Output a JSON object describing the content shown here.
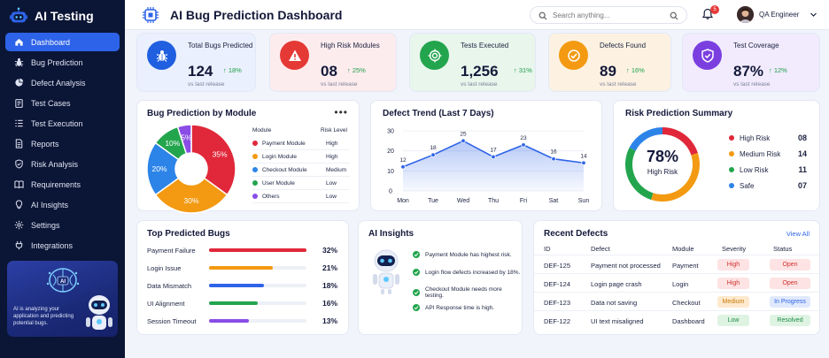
{
  "app": {
    "name": "AI Testing"
  },
  "header": {
    "title": "AI Bug Prediction Dashboard",
    "search_placeholder": "Search anything...",
    "notifications": "5",
    "user": "QA Engineer"
  },
  "sidebar": {
    "items": [
      {
        "label": "Dashboard",
        "icon": "home-icon",
        "active": true
      },
      {
        "label": "Bug Prediction",
        "icon": "bug-icon"
      },
      {
        "label": "Defect Analysis",
        "icon": "pie-icon"
      },
      {
        "label": "Test Cases",
        "icon": "clipboard-icon"
      },
      {
        "label": "Test Execution",
        "icon": "list-icon"
      },
      {
        "label": "Reports",
        "icon": "document-icon"
      },
      {
        "label": "Risk Analysis",
        "icon": "shield-icon"
      },
      {
        "label": "Requirements",
        "icon": "book-icon"
      },
      {
        "label": "AI Insights",
        "icon": "bulb-icon"
      },
      {
        "label": "Settings",
        "icon": "gear-icon"
      },
      {
        "label": "Integrations",
        "icon": "plug-icon"
      }
    ],
    "promo": {
      "badge": "AI",
      "text": "AI is analyzing your application and predicting potential bugs."
    }
  },
  "stats": [
    {
      "label": "Total Bugs Predicted",
      "value": "124",
      "delta": "18%",
      "sub": "vs last release",
      "icon": "bug-icon",
      "color": "#1f5fe0",
      "bg": "#eaf0fd"
    },
    {
      "label": "High Risk Modules",
      "value": "08",
      "delta": "25%",
      "sub": "vs last release",
      "icon": "warning-icon",
      "color": "#e53935",
      "bg": "#fdecee"
    },
    {
      "label": "Tests Executed",
      "value": "1,256",
      "delta": "31%",
      "sub": "vs last release",
      "icon": "target-icon",
      "color": "#23a54d",
      "bg": "#e8f6ec"
    },
    {
      "label": "Defects Found",
      "value": "89",
      "delta": "16%",
      "sub": "vs last release",
      "icon": "check-circle-icon",
      "color": "#f39a12",
      "bg": "#fdf2e2"
    },
    {
      "label": "Test Coverage",
      "value": "87%",
      "delta": "12%",
      "sub": "vs last release",
      "icon": "shield-check-icon",
      "color": "#7b3fe0",
      "bg": "#f1ebfd"
    }
  ],
  "module_panel": {
    "title": "Bug Prediction by Module",
    "col_module": "Module",
    "col_risk": "Risk Level",
    "rows": [
      {
        "module": "Payment Module",
        "risk": "High",
        "color": "#e0283a"
      },
      {
        "module": "Login Module",
        "risk": "High",
        "color": "#f39a12"
      },
      {
        "module": "Checkout Module",
        "risk": "Medium",
        "color": "#2d84e8"
      },
      {
        "module": "User Module",
        "risk": "Low",
        "color": "#23a54d"
      },
      {
        "module": "Others",
        "risk": "Low",
        "color": "#8a4de6"
      }
    ]
  },
  "trend_panel": {
    "title": "Defect Trend (Last 7 Days)"
  },
  "risk_panel": {
    "title": "Risk Prediction Summary",
    "center_value": "78%",
    "center_label": "High Risk",
    "items": [
      {
        "label": "High Risk",
        "value": "08",
        "color": "#e0283a"
      },
      {
        "label": "Medium Risk",
        "value": "14",
        "color": "#f39a12"
      },
      {
        "label": "Low Risk",
        "value": "11",
        "color": "#23a54d"
      },
      {
        "label": "Safe",
        "value": "07",
        "color": "#2d84e8"
      }
    ]
  },
  "bugs_panel": {
    "title": "Top Predicted Bugs",
    "rows": [
      {
        "name": "Payment Failure",
        "pct": "32%",
        "value": 32,
        "color": "#e0283a"
      },
      {
        "name": "Login Issue",
        "pct": "21%",
        "value": 21,
        "color": "#f39a12"
      },
      {
        "name": "Data Mismatch",
        "pct": "18%",
        "value": 18,
        "color": "#2d63e8"
      },
      {
        "name": "UI Alignment",
        "pct": "16%",
        "value": 16,
        "color": "#23a54d"
      },
      {
        "name": "Session Timeout",
        "pct": "13%",
        "value": 13,
        "color": "#8a4de6"
      }
    ]
  },
  "insights_panel": {
    "title": "AI Insights",
    "items": [
      "Payment Module has highest risk.",
      "Login flow defects increased by 18%.",
      "Checkout Module needs more testing.",
      "API Response time is high."
    ]
  },
  "defects_panel": {
    "title": "Recent Defects",
    "view_all": "View All",
    "headers": {
      "id": "ID",
      "defect": "Defect",
      "module": "Module",
      "severity": "Severity",
      "status": "Status"
    },
    "rows": [
      {
        "id": "DEF-125",
        "defect": "Payment not processed",
        "module": "Payment",
        "severity": "High",
        "status": "Open"
      },
      {
        "id": "DEF-124",
        "defect": "Login page crash",
        "module": "Login",
        "severity": "High",
        "status": "Open"
      },
      {
        "id": "DEF-123",
        "defect": "Data not saving",
        "module": "Checkout",
        "severity": "Medium",
        "status": "In Progress"
      },
      {
        "id": "DEF-122",
        "defect": "UI text misaligned",
        "module": "Dashboard",
        "severity": "Low",
        "status": "Resolved"
      }
    ]
  },
  "chart_data": [
    {
      "type": "pie",
      "title": "Bug Prediction by Module",
      "categories": [
        "Payment Module",
        "Login Module",
        "Checkout Module",
        "User Module",
        "Others"
      ],
      "values": [
        35,
        30,
        20,
        10,
        5
      ],
      "labels": [
        "35%",
        "30%",
        "20%",
        "10%",
        "5%"
      ],
      "colors": [
        "#e0283a",
        "#f39a12",
        "#2d84e8",
        "#23a54d",
        "#8a4de6"
      ],
      "donut": true
    },
    {
      "type": "area",
      "title": "Defect Trend (Last 7 Days)",
      "categories": [
        "Mon",
        "Tue",
        "Wed",
        "Thu",
        "Fri",
        "Sat",
        "Sun"
      ],
      "values": [
        12,
        18,
        25,
        17,
        23,
        16,
        14
      ],
      "ylim": [
        0,
        30
      ],
      "yticks": [
        0,
        10,
        20,
        30
      ],
      "grid": true,
      "color": "#2d63e8"
    },
    {
      "type": "pie",
      "title": "Risk Prediction Summary",
      "categories": [
        "High Risk",
        "Medium Risk",
        "Low Risk",
        "Safe"
      ],
      "values": [
        8,
        14,
        11,
        7
      ],
      "colors": [
        "#e0283a",
        "#f39a12",
        "#23a54d",
        "#2d84e8"
      ],
      "donut": true
    }
  ]
}
